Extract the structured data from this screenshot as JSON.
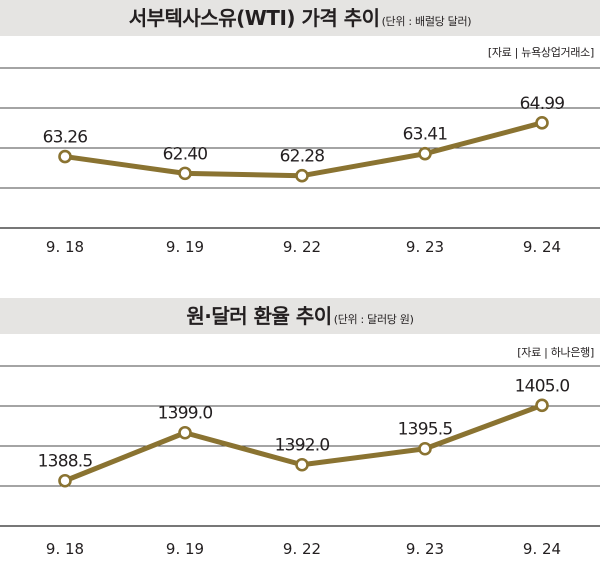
{
  "colors": {
    "line": "#8a7331",
    "marker_fill": "#ffffff",
    "grid": "#4a4a4a",
    "title_bg": "#e5e4e2"
  },
  "charts": [
    {
      "title": "서부텍사스유(WTI) 가격 추이",
      "unit": "(단위 : 배럴당 달러)",
      "source": "[자료 | 뉴욕상업거래소]"
    },
    {
      "title": "원·달러 환율 추이",
      "unit": "(단위 : 달러당 원)",
      "source": "[자료 | 하나은행]"
    }
  ],
  "chart_data": [
    {
      "type": "line",
      "title": "서부텍사스유(WTI) 가격 추이",
      "categories": [
        "9. 18",
        "9. 19",
        "9. 22",
        "9. 23",
        "9. 24"
      ],
      "values": [
        63.26,
        62.4,
        62.28,
        63.41,
        64.99
      ],
      "labels": [
        "63.26",
        "62.40",
        "62.28",
        "63.41",
        "64.99"
      ],
      "ylim": [
        59.6,
        67.8
      ],
      "grid": true
    },
    {
      "type": "line",
      "title": "원·달러 환율 추이",
      "categories": [
        "9. 18",
        "9. 19",
        "9. 22",
        "9. 23",
        "9. 24"
      ],
      "values": [
        1388.5,
        1399.0,
        1392.0,
        1395.5,
        1405.0
      ],
      "labels": [
        "1388.5",
        "1399.0",
        "1392.0",
        "1395.5",
        "1405.0"
      ],
      "ylim": [
        1378.6,
        1413.6
      ],
      "grid": true
    }
  ]
}
